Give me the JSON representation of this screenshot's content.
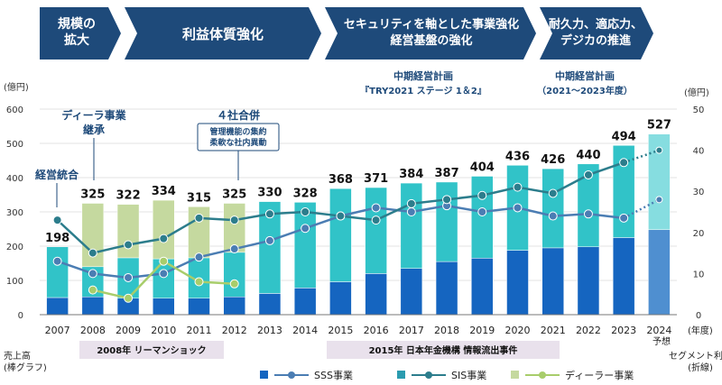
{
  "phases": [
    {
      "label": "規模の\n拡大"
    },
    {
      "label": "利益体質強化"
    },
    {
      "label": "セキュリティを軸とした事業強化\n経営基盤の強化"
    },
    {
      "label": "耐久力、適応力、\nデジカの推進"
    }
  ],
  "plans": [
    {
      "title": "中期経営計画",
      "subtitle": "『TRY2021 ステージ 1＆2』"
    },
    {
      "title": "中期経営計画",
      "subtitle": "（2021～2023年度）"
    }
  ],
  "annotations": {
    "integration": "経営統合",
    "dealer_takeover": "ディーラ事業\n継承",
    "merger_title": "４社合併",
    "merger_detail": "管理機能の集約\n柔軟な社内異動"
  },
  "events": {
    "lehman": "2008年 リーマンショック",
    "pension": "2015年 日本年金機構 情報流出事件"
  },
  "footer": {
    "left_label": "売上高\n(棒グラフ)",
    "right_label": "セグメント利益\n(折線)",
    "year_unit": "(年度)",
    "forecast": "予想"
  },
  "colors": {
    "sss": "#1565C0",
    "sis_bar": "#31C3C8",
    "dealer_bar": "#C5D99F",
    "forecast_sss": "#4F8FD0",
    "forecast_sis": "#86DDE0",
    "sss_line": "#4B7DB3",
    "sis_line": "#2C7D8C",
    "dealer_line": "#A8CD6B",
    "phase_arrow": "#1E4A7A",
    "plan_text": "#1E4A7A",
    "event_bg": "#E9E1EC"
  },
  "chart_data": {
    "type": "bar",
    "categories": [
      "2007",
      "2008",
      "2009",
      "2010",
      "2011",
      "2012",
      "2013",
      "2014",
      "2015",
      "2016",
      "2017",
      "2018",
      "2019",
      "2020",
      "2021",
      "2022",
      "2023",
      "2024"
    ],
    "totals": [
      198,
      325,
      322,
      334,
      315,
      325,
      330,
      328,
      368,
      371,
      384,
      387,
      404,
      436,
      426,
      440,
      494,
      527
    ],
    "series": [
      {
        "name": "SSS事業",
        "kind": "bar",
        "values": [
          50,
          52,
          48,
          48,
          48,
          52,
          62,
          78,
          96,
          120,
          135,
          155,
          165,
          188,
          195,
          198,
          225,
          248
        ]
      },
      {
        "name": "SIS事業",
        "kind": "bar",
        "values": [
          148,
          88,
          118,
          115,
          118,
          130,
          268,
          250,
          272,
          251,
          249,
          232,
          239,
          248,
          231,
          242,
          269,
          279
        ]
      },
      {
        "name": "ディーラー事業",
        "kind": "bar",
        "values": [
          0,
          185,
          156,
          171,
          149,
          143,
          0,
          0,
          0,
          0,
          0,
          0,
          0,
          0,
          0,
          0,
          0,
          0
        ]
      },
      {
        "name": "SSS事業",
        "kind": "line",
        "values": [
          13,
          10,
          9,
          10,
          14,
          16,
          18,
          21,
          24,
          26,
          25,
          26.5,
          25,
          26,
          24,
          24.5,
          23.5,
          28
        ]
      },
      {
        "name": "SIS事業",
        "kind": "line",
        "values": [
          23,
          15,
          17,
          18.5,
          23.5,
          23,
          24.5,
          25,
          24,
          23,
          27,
          28,
          29,
          31,
          29.5,
          34,
          37,
          40
        ]
      },
      {
        "name": "ディーラー事業",
        "kind": "line",
        "values": [
          null,
          6,
          4,
          13,
          8,
          7.5,
          null,
          null,
          null,
          null,
          null,
          null,
          null,
          null,
          null,
          null,
          null,
          null
        ]
      }
    ],
    "forecast_index": 17,
    "y_left": {
      "label": "(億円)",
      "min": 0,
      "max": 600,
      "ticks": [
        0,
        100,
        200,
        300,
        400,
        500,
        600
      ]
    },
    "y_right": {
      "label": "(億円)",
      "min": 0,
      "max": 50,
      "ticks": [
        0,
        10,
        20,
        30,
        40,
        50
      ]
    },
    "xlabel": "(年度)"
  }
}
